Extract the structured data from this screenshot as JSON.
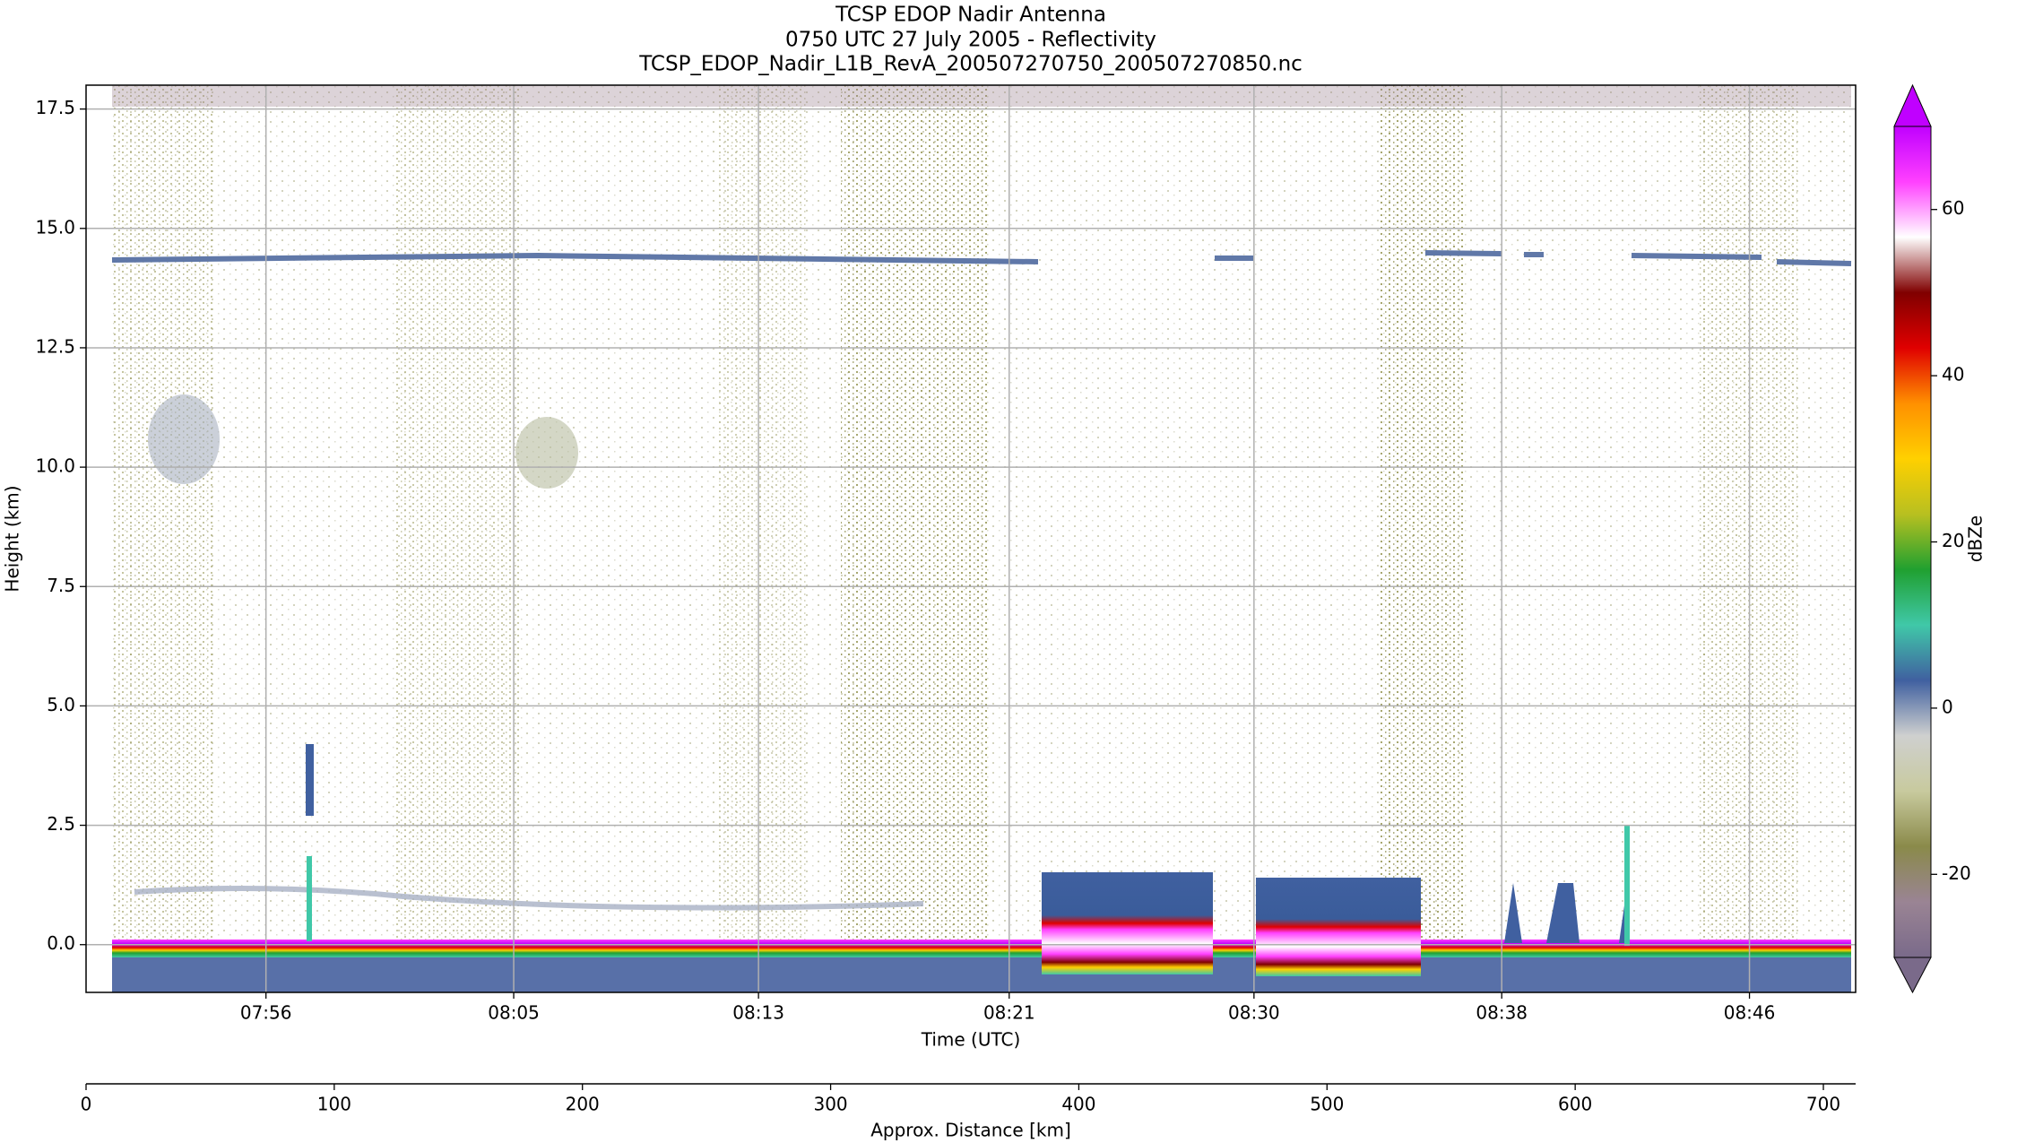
{
  "chart_data": {
    "type": "heatmap",
    "title": [
      "TCSP EDOP Nadir Antenna",
      "0750 UTC 27 July 2005 - Reflectivity",
      "TCSP_EDOP_Nadir_L1B_RevA_200507270750_200507270850.nc"
    ],
    "x_label": "Time (UTC)",
    "y_label": "Height (km)",
    "xlim": [
      0,
      60
    ],
    "xticks": [
      {
        "value": 6.1,
        "label": "07:56"
      },
      {
        "value": 14.5,
        "label": "08:05"
      },
      {
        "value": 22.8,
        "label": "08:13"
      },
      {
        "value": 31.3,
        "label": "08:21"
      },
      {
        "value": 39.6,
        "label": "08:30"
      },
      {
        "value": 48.0,
        "label": "08:38"
      },
      {
        "value": 56.4,
        "label": "08:46"
      }
    ],
    "ylim": [
      -1.0,
      18.0
    ],
    "yticks": [
      {
        "value": 0,
        "label": "0.0"
      },
      2.5,
      {
        "value": 5,
        "label": "5.0"
      },
      7.5,
      {
        "value": 10,
        "label": "10.0"
      },
      12.5,
      {
        "value": 15,
        "label": "15.0"
      },
      17.5
    ],
    "grid": true,
    "x2_label": "Approx. Distance [km]",
    "x2lim": [
      0,
      713
    ],
    "x2ticks": [
      0,
      100,
      200,
      300,
      400,
      500,
      600,
      700
    ],
    "colorbar": {
      "label": "dBZe",
      "lim": [
        -30,
        70
      ],
      "ticks": [
        -20,
        0,
        20,
        40,
        60
      ],
      "colors": [
        "#7a6a8a",
        "#9a8494",
        "#8a8a4a",
        "#c8ca9e",
        "#cfd0cf",
        "#4060a0",
        "#40c8a8",
        "#20a030",
        "#b8c020",
        "#ffd000",
        "#ff9000",
        "#e00000",
        "#800000",
        "#ffffff",
        "#ff40ff",
        "#c000ff"
      ]
    }
  }
}
